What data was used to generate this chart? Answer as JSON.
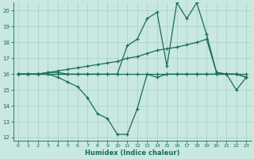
{
  "xlabel": "Humidex (Indice chaleur)",
  "x": [
    0,
    1,
    2,
    3,
    4,
    5,
    6,
    7,
    8,
    9,
    10,
    11,
    12,
    13,
    14,
    15,
    16,
    17,
    18,
    19,
    20,
    21,
    22,
    23
  ],
  "line1_y": [
    16,
    16,
    16,
    16,
    15.8,
    15.5,
    15.2,
    14.5,
    13.5,
    13.2,
    12.2,
    12.2,
    13.8,
    16.0,
    15.8,
    16.0,
    16.0,
    16.0,
    16.0,
    16.0,
    16.0,
    16.0,
    15.0,
    15.8
  ],
  "line2_y": [
    16,
    16,
    16,
    16.1,
    16.1,
    16.0,
    16.0,
    16.0,
    16.0,
    16.0,
    16.0,
    17.8,
    18.2,
    19.5,
    19.9,
    16.5,
    20.5,
    19.5,
    20.5,
    18.5,
    16.1,
    16.0,
    16.0,
    15.8
  ],
  "line3_y": [
    16,
    16,
    16,
    16,
    16,
    16,
    16,
    16,
    16,
    16,
    16,
    16,
    16,
    16,
    16,
    16,
    16,
    16,
    16,
    16,
    16,
    16,
    16,
    16
  ],
  "line4_y": [
    16.0,
    16.0,
    16.0,
    16.1,
    16.2,
    16.3,
    16.4,
    16.5,
    16.6,
    16.7,
    16.8,
    17.0,
    17.1,
    17.3,
    17.5,
    17.6,
    17.7,
    17.85,
    18.0,
    18.2,
    16.1,
    16.0,
    16.0,
    15.8
  ],
  "line_color": "#1a6b5a",
  "bg_color": "#c8e8e0",
  "grid_color": "#a8cfc8",
  "ylim": [
    11.8,
    20.5
  ],
  "xlim": [
    -0.5,
    23.5
  ],
  "yticks": [
    12,
    13,
    14,
    15,
    16,
    17,
    18,
    19,
    20
  ],
  "xticks": [
    0,
    1,
    2,
    3,
    4,
    5,
    6,
    7,
    8,
    9,
    10,
    11,
    12,
    13,
    14,
    15,
    16,
    17,
    18,
    19,
    20,
    21,
    22,
    23
  ]
}
